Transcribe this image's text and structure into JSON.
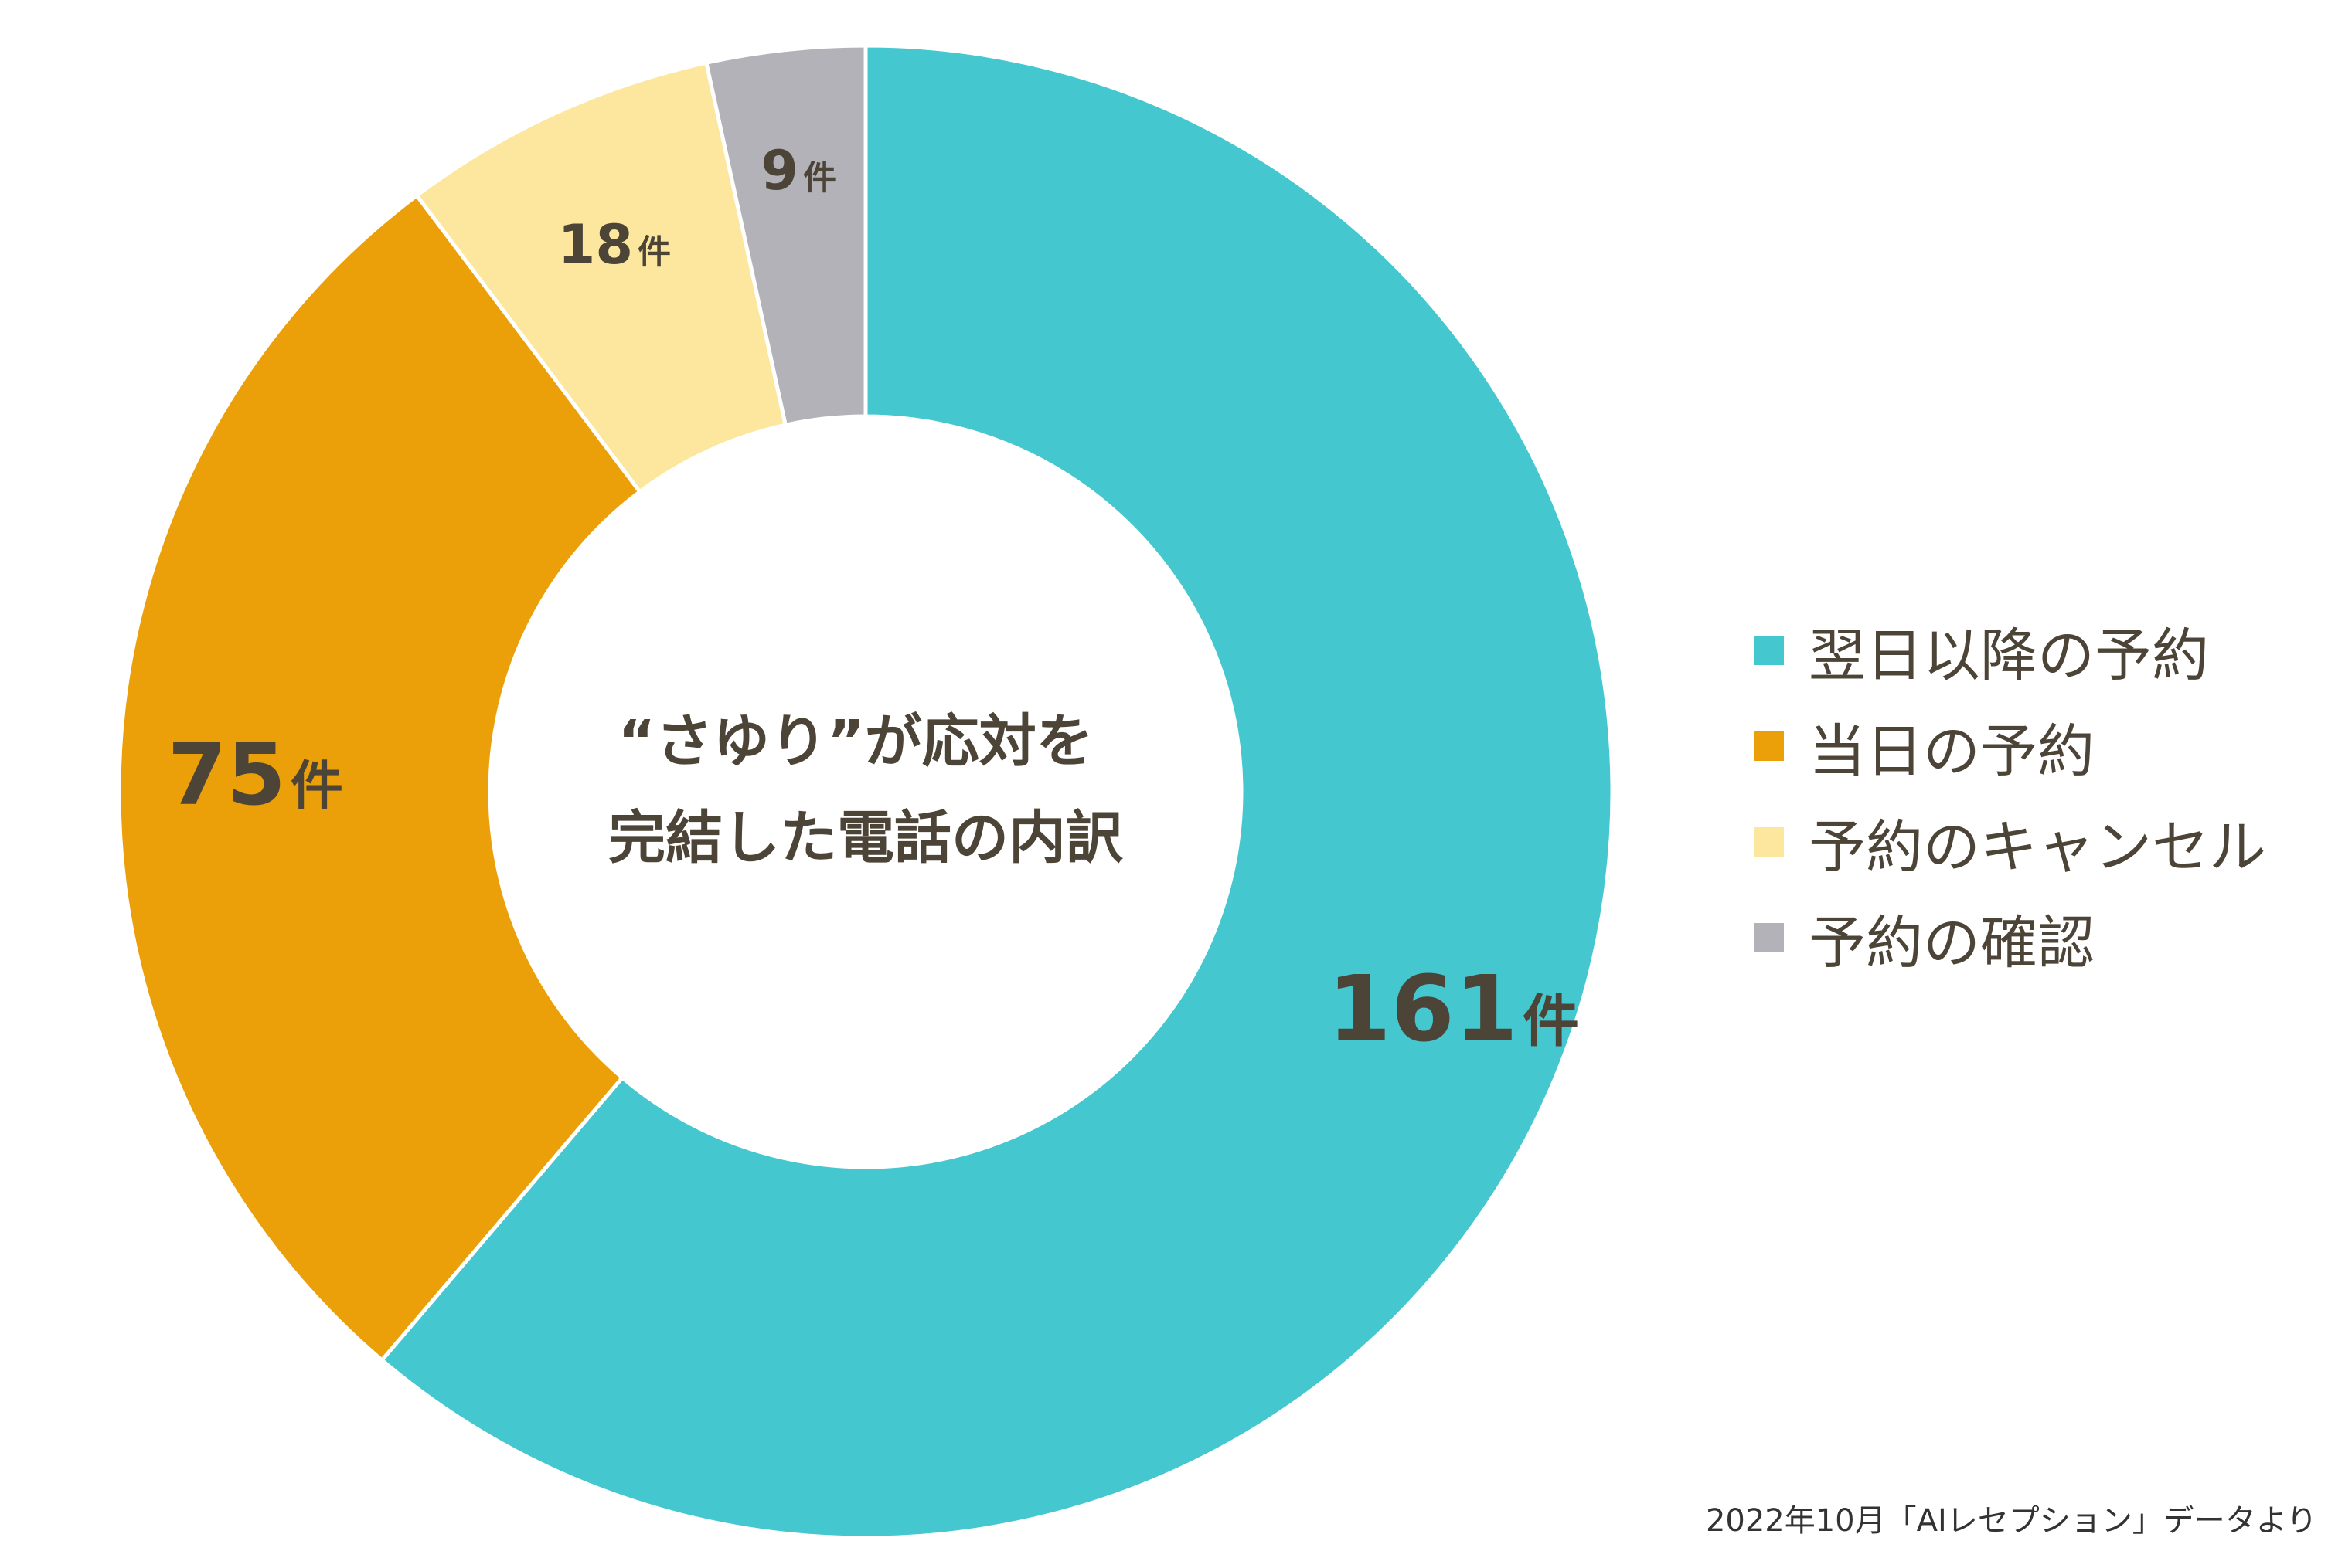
{
  "chart_data": {
    "type": "pie",
    "variant": "donut",
    "title": "“さゆり”が応対を完結した電話の内訳",
    "title_lines": [
      "“さゆり”が応対を",
      "完結した電話の内訳"
    ],
    "unit": "件",
    "slices": [
      {
        "name": "翌日以降の予約",
        "value": 161,
        "label": "161件",
        "color": "#45c7d0"
      },
      {
        "name": "当日の予約",
        "value": 75,
        "label": "75件",
        "color": "#eba00a"
      },
      {
        "name": "予約のキャンセル",
        "value": 18,
        "label": "18件",
        "color": "#fde79f"
      },
      {
        "name": "予約の確認",
        "value": 9,
        "label": "9件",
        "color": "#b2b2b8"
      }
    ],
    "legend_position": "right"
  },
  "source_note": "2022年10月「AIレセプション」データより"
}
